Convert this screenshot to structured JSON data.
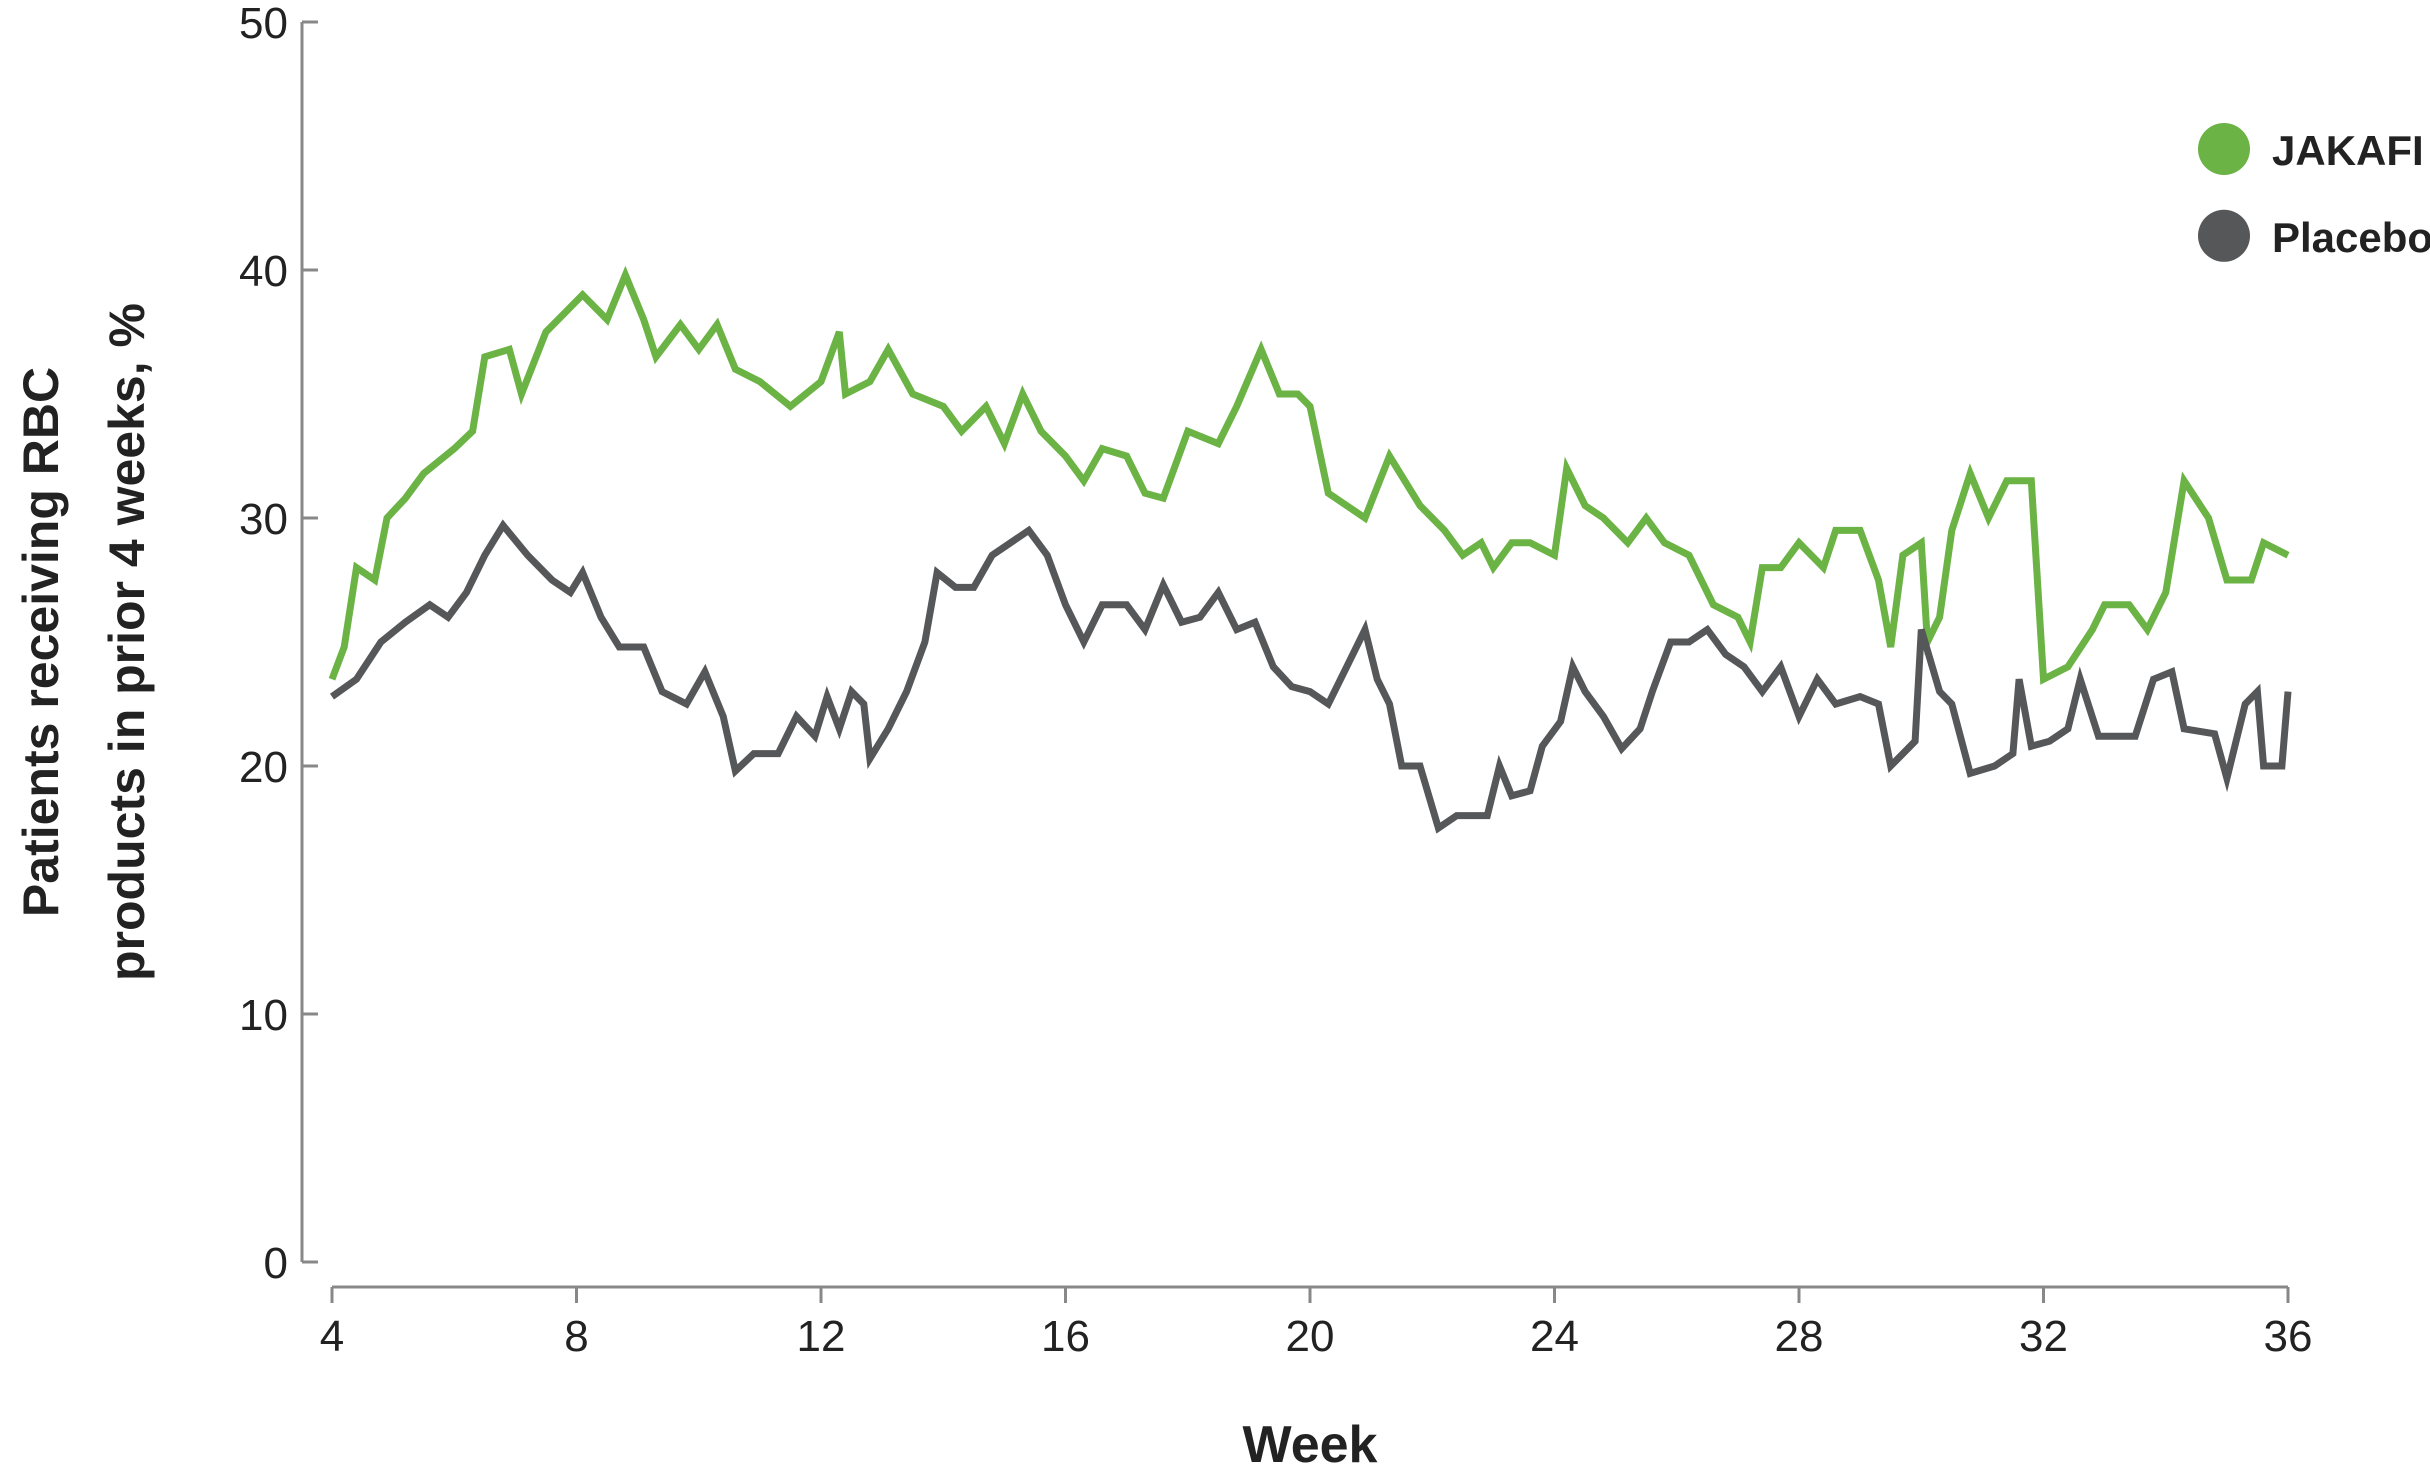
{
  "chart_data": {
    "type": "line",
    "ylabel": [
      "Patients receiving RBC",
      "products in prior 4 weeks, %"
    ],
    "xlabel": "Week",
    "xlim": [
      4,
      36
    ],
    "xticks": [
      4,
      8,
      12,
      16,
      20,
      24,
      28,
      32,
      36
    ],
    "ylim": [
      0,
      50
    ],
    "yticks": [
      0,
      10,
      20,
      30,
      40,
      50
    ],
    "grid": false,
    "legend": "upper right",
    "series": [
      {
        "name": "JAKAFI",
        "color": "#6ab344",
        "x": [
          4,
          4.2,
          4.4,
          4.7,
          4.9,
          5.2,
          5.5,
          6,
          6.3,
          6.5,
          6.9,
          7.1,
          7.5,
          7.9,
          8.1,
          8.5,
          8.8,
          9.1,
          9.3,
          9.7,
          10,
          10.3,
          10.6,
          11,
          11.5,
          12,
          12.3,
          12.4,
          12.8,
          13.1,
          13.5,
          14,
          14.3,
          14.7,
          15,
          15.3,
          15.6,
          16,
          16.3,
          16.6,
          17,
          17.3,
          17.6,
          18,
          18.5,
          18.8,
          19.2,
          19.5,
          19.8,
          20,
          20.3,
          20.6,
          20.9,
          21.3,
          21.8,
          22.2,
          22.5,
          22.8,
          23,
          23.3,
          23.6,
          24,
          24.2,
          24.5,
          24.8,
          25.2,
          25.5,
          25.8,
          26.2,
          26.6,
          27,
          27.2,
          27.4,
          27.7,
          28,
          28.4,
          28.6,
          29,
          29.3,
          29.5,
          29.7,
          30,
          30.1,
          30.3,
          30.5,
          30.8,
          31.1,
          31.4,
          31.8,
          32,
          32.4,
          32.8,
          33,
          33.4,
          33.7,
          34,
          34.3,
          34.7,
          35,
          35.4,
          35.6,
          36
        ],
        "values": [
          23.5,
          24.8,
          28,
          27.5,
          30,
          30.8,
          31.8,
          32.8,
          33.5,
          36.5,
          36.8,
          35,
          37.5,
          38.5,
          39,
          38,
          39.8,
          38,
          36.5,
          37.8,
          36.8,
          37.8,
          36,
          35.5,
          34.5,
          35.5,
          37.5,
          35,
          35.5,
          36.8,
          35,
          34.5,
          33.5,
          34.5,
          33,
          35,
          33.5,
          32.5,
          31.5,
          32.8,
          32.5,
          31,
          30.8,
          33.5,
          33,
          34.5,
          36.8,
          35,
          35,
          34.5,
          31,
          30.5,
          30,
          32.5,
          30.5,
          29.5,
          28.5,
          29,
          28,
          29,
          29,
          28.5,
          32,
          30.5,
          30,
          29,
          30,
          29,
          28.5,
          26.5,
          26,
          25,
          28,
          28,
          29,
          28,
          29.5,
          29.5,
          27.5,
          24.8,
          28.5,
          29,
          25,
          26,
          29.5,
          31.8,
          30,
          31.5,
          31.5,
          23.5,
          24,
          25.5,
          26.5,
          26.5,
          25.5,
          27,
          31.5,
          30,
          27.5,
          27.5,
          29,
          28.5
        ]
      },
      {
        "name": "Placebo",
        "color": "#555759",
        "x": [
          4,
          4.4,
          4.8,
          5.2,
          5.6,
          5.9,
          6.2,
          6.5,
          6.8,
          7.2,
          7.6,
          7.9,
          8.1,
          8.4,
          8.7,
          9.1,
          9.4,
          9.8,
          10.1,
          10.4,
          10.6,
          10.9,
          11.3,
          11.6,
          11.9,
          12.1,
          12.3,
          12.5,
          12.7,
          12.8,
          13.1,
          13.4,
          13.7,
          13.9,
          14.2,
          14.5,
          14.8,
          15.1,
          15.4,
          15.7,
          16,
          16.3,
          16.6,
          17,
          17.3,
          17.6,
          17.9,
          18.2,
          18.5,
          18.8,
          19.1,
          19.4,
          19.7,
          20,
          20.3,
          20.6,
          20.9,
          21.1,
          21.3,
          21.5,
          21.8,
          22.1,
          22.4,
          22.9,
          23.1,
          23.3,
          23.6,
          23.8,
          24.1,
          24.3,
          24.5,
          24.8,
          25.1,
          25.4,
          25.6,
          25.9,
          26.2,
          26.5,
          26.8,
          27.1,
          27.4,
          27.7,
          28,
          28.3,
          28.6,
          29,
          29.3,
          29.5,
          29.9,
          30,
          30.3,
          30.5,
          30.8,
          31.2,
          31.5,
          31.6,
          31.8,
          32.1,
          32.4,
          32.6,
          32.9,
          33.5,
          33.8,
          34.1,
          34.3,
          34.8,
          35,
          35.3,
          35.5,
          35.6,
          35.9,
          36
        ],
        "values": [
          22.8,
          23.5,
          25,
          25.8,
          26.5,
          26,
          27,
          28.5,
          29.7,
          28.5,
          27.5,
          27,
          27.8,
          26,
          24.8,
          24.8,
          23,
          22.5,
          23.8,
          22,
          19.8,
          20.5,
          20.5,
          22,
          21.2,
          22.8,
          21.5,
          23,
          22.5,
          20.3,
          21.5,
          23,
          25,
          27.8,
          27.2,
          27.2,
          28.5,
          29,
          29.5,
          28.5,
          26.5,
          25,
          26.5,
          26.5,
          25.5,
          27.3,
          25.8,
          26,
          27,
          25.5,
          25.8,
          24,
          23.2,
          23,
          22.5,
          24,
          25.5,
          23.5,
          22.5,
          20,
          20,
          17.5,
          18,
          18,
          20,
          18.8,
          19,
          20.8,
          21.8,
          24,
          23,
          22,
          20.7,
          21.5,
          23,
          25,
          25,
          25.5,
          24.5,
          24,
          23,
          24,
          22,
          23.5,
          22.5,
          22.8,
          22.5,
          20,
          21,
          25.5,
          23,
          22.5,
          19.7,
          20,
          20.5,
          23.5,
          20.8,
          21,
          21.5,
          23.5,
          21.2,
          21.2,
          23.5,
          23.8,
          21.5,
          21.3,
          19.5,
          22.5,
          23,
          20,
          20,
          23
        ]
      }
    ]
  }
}
